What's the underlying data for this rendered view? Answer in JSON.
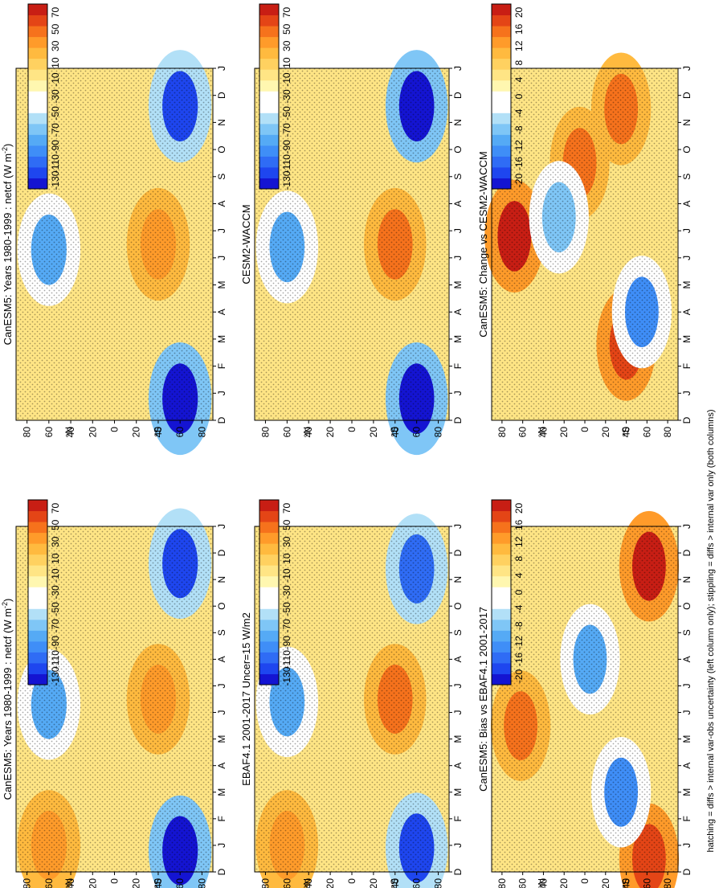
{
  "figure": {
    "footnote": "hatching = diffs > internal var-obs uncertainty (left column only); stippling = diffs > internal var only (both columns)",
    "month_labels": [
      "D",
      "J",
      "F",
      "M",
      "A",
      "M",
      "J",
      "J",
      "A",
      "S",
      "O",
      "N",
      "D",
      "J"
    ],
    "lat_labels": [
      "80",
      "60",
      "40",
      "20",
      "0",
      "20",
      "40",
      "60",
      "80"
    ],
    "hem_n": "°N",
    "hem_s": "°S"
  },
  "colors": {
    "abs_palette": [
      "#1414d2",
      "#1e46ef",
      "#2f6cf5",
      "#3f8ef7",
      "#55aaf5",
      "#7fc6f6",
      "#b2e0f7",
      "#ffffff",
      "#ffffff",
      "#fff7b0",
      "#ffe585",
      "#ffd160",
      "#ffba3f",
      "#ff9b2a",
      "#f6721c",
      "#e44516",
      "#c81e14"
    ],
    "diff_palette": [
      "#1414d2",
      "#1e46ef",
      "#2f6cf5",
      "#3f8ef7",
      "#55aaf5",
      "#7fc6f6",
      "#b2e0f7",
      "#ffffff",
      "#ffffff",
      "#fff7b0",
      "#ffe585",
      "#ffd160",
      "#ffba3f",
      "#ff9b2a",
      "#f6721c",
      "#e44516",
      "#c81e14"
    ]
  },
  "chart_data": [
    {
      "type": "heatmap",
      "id": "p_bl",
      "title": "CanESM5: Years 1980-1999 : netcf (W m",
      "title_sup": "-2",
      "title_end": ")",
      "xlabel": "month",
      "ylabel": "latitude",
      "x": [
        "D",
        "J",
        "F",
        "M",
        "A",
        "M",
        "J",
        "J",
        "A",
        "S",
        "O",
        "N",
        "D",
        "J"
      ],
      "ylim": [
        -90,
        90
      ],
      "colorbar_labels": [
        "70",
        "50",
        "30",
        "10",
        "-10",
        "-30",
        "-50",
        "-70",
        "-90",
        "-110",
        "-130"
      ],
      "features": [
        {
          "month": 6.3,
          "lat": 60,
          "value": -80
        },
        {
          "month": 0.8,
          "lat": -60,
          "value": -125
        },
        {
          "month": 11.6,
          "lat": -60,
          "value": -120
        },
        {
          "month": 6.5,
          "lat": -40,
          "value": 35
        },
        {
          "month": 1,
          "lat": 60,
          "value": 30
        }
      ]
    },
    {
      "type": "heatmap",
      "id": "p_ml",
      "title": "EBAF4.1 2001-2017 Uncer=15 W/m2",
      "xlabel": "month",
      "ylabel": "latitude",
      "x": [
        "D",
        "J",
        "F",
        "M",
        "A",
        "M",
        "J",
        "J",
        "A",
        "S",
        "O",
        "N",
        "D",
        "J"
      ],
      "ylim": [
        -90,
        90
      ],
      "colorbar_labels": [
        "70",
        "50",
        "30",
        "10",
        "-10",
        "-30",
        "-50",
        "-70",
        "-90",
        "-110",
        "-130"
      ],
      "features": [
        {
          "month": 6.4,
          "lat": 60,
          "value": -80
        },
        {
          "month": 0.9,
          "lat": -60,
          "value": -115
        },
        {
          "month": 11.4,
          "lat": -60,
          "value": -110
        },
        {
          "month": 6.5,
          "lat": -40,
          "value": 40
        },
        {
          "month": 1,
          "lat": 60,
          "value": 30
        }
      ]
    },
    {
      "type": "heatmap",
      "id": "p_tl",
      "title": "CanESM5: Bias vs EBAF4.1 2001-2017",
      "xlabel": "month",
      "ylabel": "latitude",
      "x": [
        "D",
        "J",
        "F",
        "M",
        "A",
        "M",
        "J",
        "J",
        "A",
        "S",
        "O",
        "N",
        "D",
        "J"
      ],
      "ylim": [
        -90,
        90
      ],
      "colorbar_labels": [
        "20",
        "16",
        "12",
        "8",
        "4",
        "0",
        "-4",
        "-8",
        "-12",
        "-16",
        "-20"
      ],
      "features": [
        {
          "month": 5.5,
          "lat": 62,
          "value": 16
        },
        {
          "month": 11.5,
          "lat": -62,
          "value": 20
        },
        {
          "month": 0.5,
          "lat": -62,
          "value": 18
        },
        {
          "month": 8,
          "lat": -5,
          "value": -10
        },
        {
          "month": 3,
          "lat": -35,
          "value": -12
        }
      ]
    },
    {
      "type": "heatmap",
      "id": "p_br",
      "title": "CanESM5: Years 1980-1999 : netcf (W m",
      "title_sup": "-2",
      "title_end": ")",
      "xlabel": "month",
      "ylabel": "latitude",
      "x": [
        "D",
        "J",
        "F",
        "M",
        "A",
        "M",
        "J",
        "J",
        "A",
        "S",
        "O",
        "N",
        "D",
        "J"
      ],
      "ylim": [
        -90,
        90
      ],
      "colorbar_labels": [
        "70",
        "50",
        "30",
        "10",
        "-10",
        "-30",
        "-50",
        "-70",
        "-90",
        "-110",
        "-130"
      ],
      "features": [
        {
          "month": 6.3,
          "lat": 60,
          "value": -80
        },
        {
          "month": 0.8,
          "lat": -60,
          "value": -125
        },
        {
          "month": 11.6,
          "lat": -60,
          "value": -120
        },
        {
          "month": 6.5,
          "lat": -40,
          "value": 35
        }
      ]
    },
    {
      "type": "heatmap",
      "id": "p_mr",
      "title": "CESM2-WACCM",
      "xlabel": "month",
      "ylabel": "latitude",
      "x": [
        "D",
        "J",
        "F",
        "M",
        "A",
        "M",
        "J",
        "J",
        "A",
        "S",
        "O",
        "N",
        "D",
        "J"
      ],
      "ylim": [
        -90,
        90
      ],
      "colorbar_labels": [
        "70",
        "50",
        "30",
        "10",
        "-10",
        "-30",
        "-50",
        "-70",
        "-90",
        "-110",
        "-130"
      ],
      "features": [
        {
          "month": 6.4,
          "lat": 60,
          "value": -85
        },
        {
          "month": 0.8,
          "lat": -60,
          "value": -130
        },
        {
          "month": 11.6,
          "lat": -60,
          "value": -130
        },
        {
          "month": 6.5,
          "lat": -40,
          "value": 45
        }
      ]
    },
    {
      "type": "heatmap",
      "id": "p_tr",
      "title": "CanESM5: Change vs CESM2-WACCM",
      "xlabel": "month",
      "ylabel": "latitude",
      "x": [
        "D",
        "J",
        "F",
        "M",
        "A",
        "M",
        "J",
        "J",
        "A",
        "S",
        "O",
        "N",
        "D",
        "J"
      ],
      "ylim": [
        -90,
        90
      ],
      "colorbar_labels": [
        "20",
        "16",
        "12",
        "8",
        "4",
        "0",
        "-4",
        "-8",
        "-12",
        "-16",
        "-20"
      ],
      "features": [
        {
          "month": 6.8,
          "lat": 68,
          "value": 22
        },
        {
          "month": 2.8,
          "lat": -40,
          "value": 18
        },
        {
          "month": 11.5,
          "lat": -35,
          "value": 16
        },
        {
          "month": 9.5,
          "lat": 5,
          "value": 14
        },
        {
          "month": 7.5,
          "lat": 25,
          "value": -8
        },
        {
          "month": 4,
          "lat": -55,
          "value": -12
        }
      ]
    }
  ]
}
